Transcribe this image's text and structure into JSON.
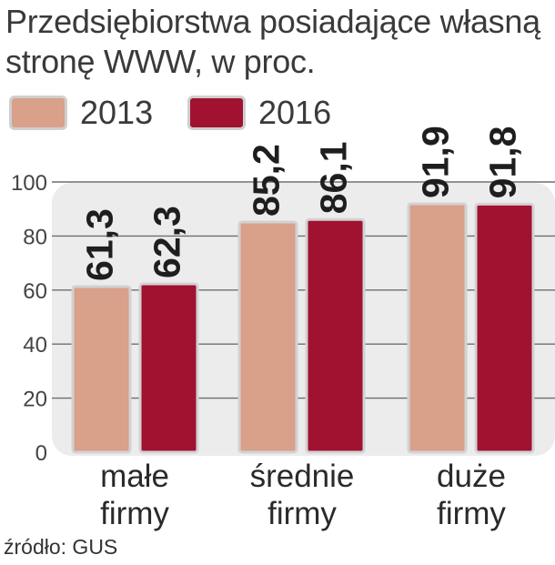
{
  "title_lines": [
    "Przedsiębiorstwa posiadające własną",
    "stronę WWW, w proc."
  ],
  "source": "źródło: GUS",
  "colors": {
    "2013": "#d9a08a",
    "2016": "#a01230",
    "panel": "#ececec",
    "grid": "#6e6e6e"
  },
  "chart_data": {
    "type": "bar",
    "title": "Przedsiębiorstwa posiadające własną stronę WWW, w proc.",
    "categories": [
      [
        "małe",
        "firmy"
      ],
      [
        "średnie",
        "firmy"
      ],
      [
        "duże",
        "firmy"
      ]
    ],
    "series": [
      {
        "name": "2013",
        "values": [
          61.3,
          85.2,
          91.9
        ],
        "labels": [
          "61,3",
          "85,2",
          "91,9"
        ]
      },
      {
        "name": "2016",
        "values": [
          62.3,
          86.1,
          91.8
        ],
        "labels": [
          "62,3",
          "86,1",
          "91,8"
        ]
      }
    ],
    "yticks": [
      "0",
      "20",
      "40",
      "60",
      "80",
      "100"
    ],
    "ylim": [
      0,
      100
    ],
    "legend": "top-left",
    "grid": true
  }
}
